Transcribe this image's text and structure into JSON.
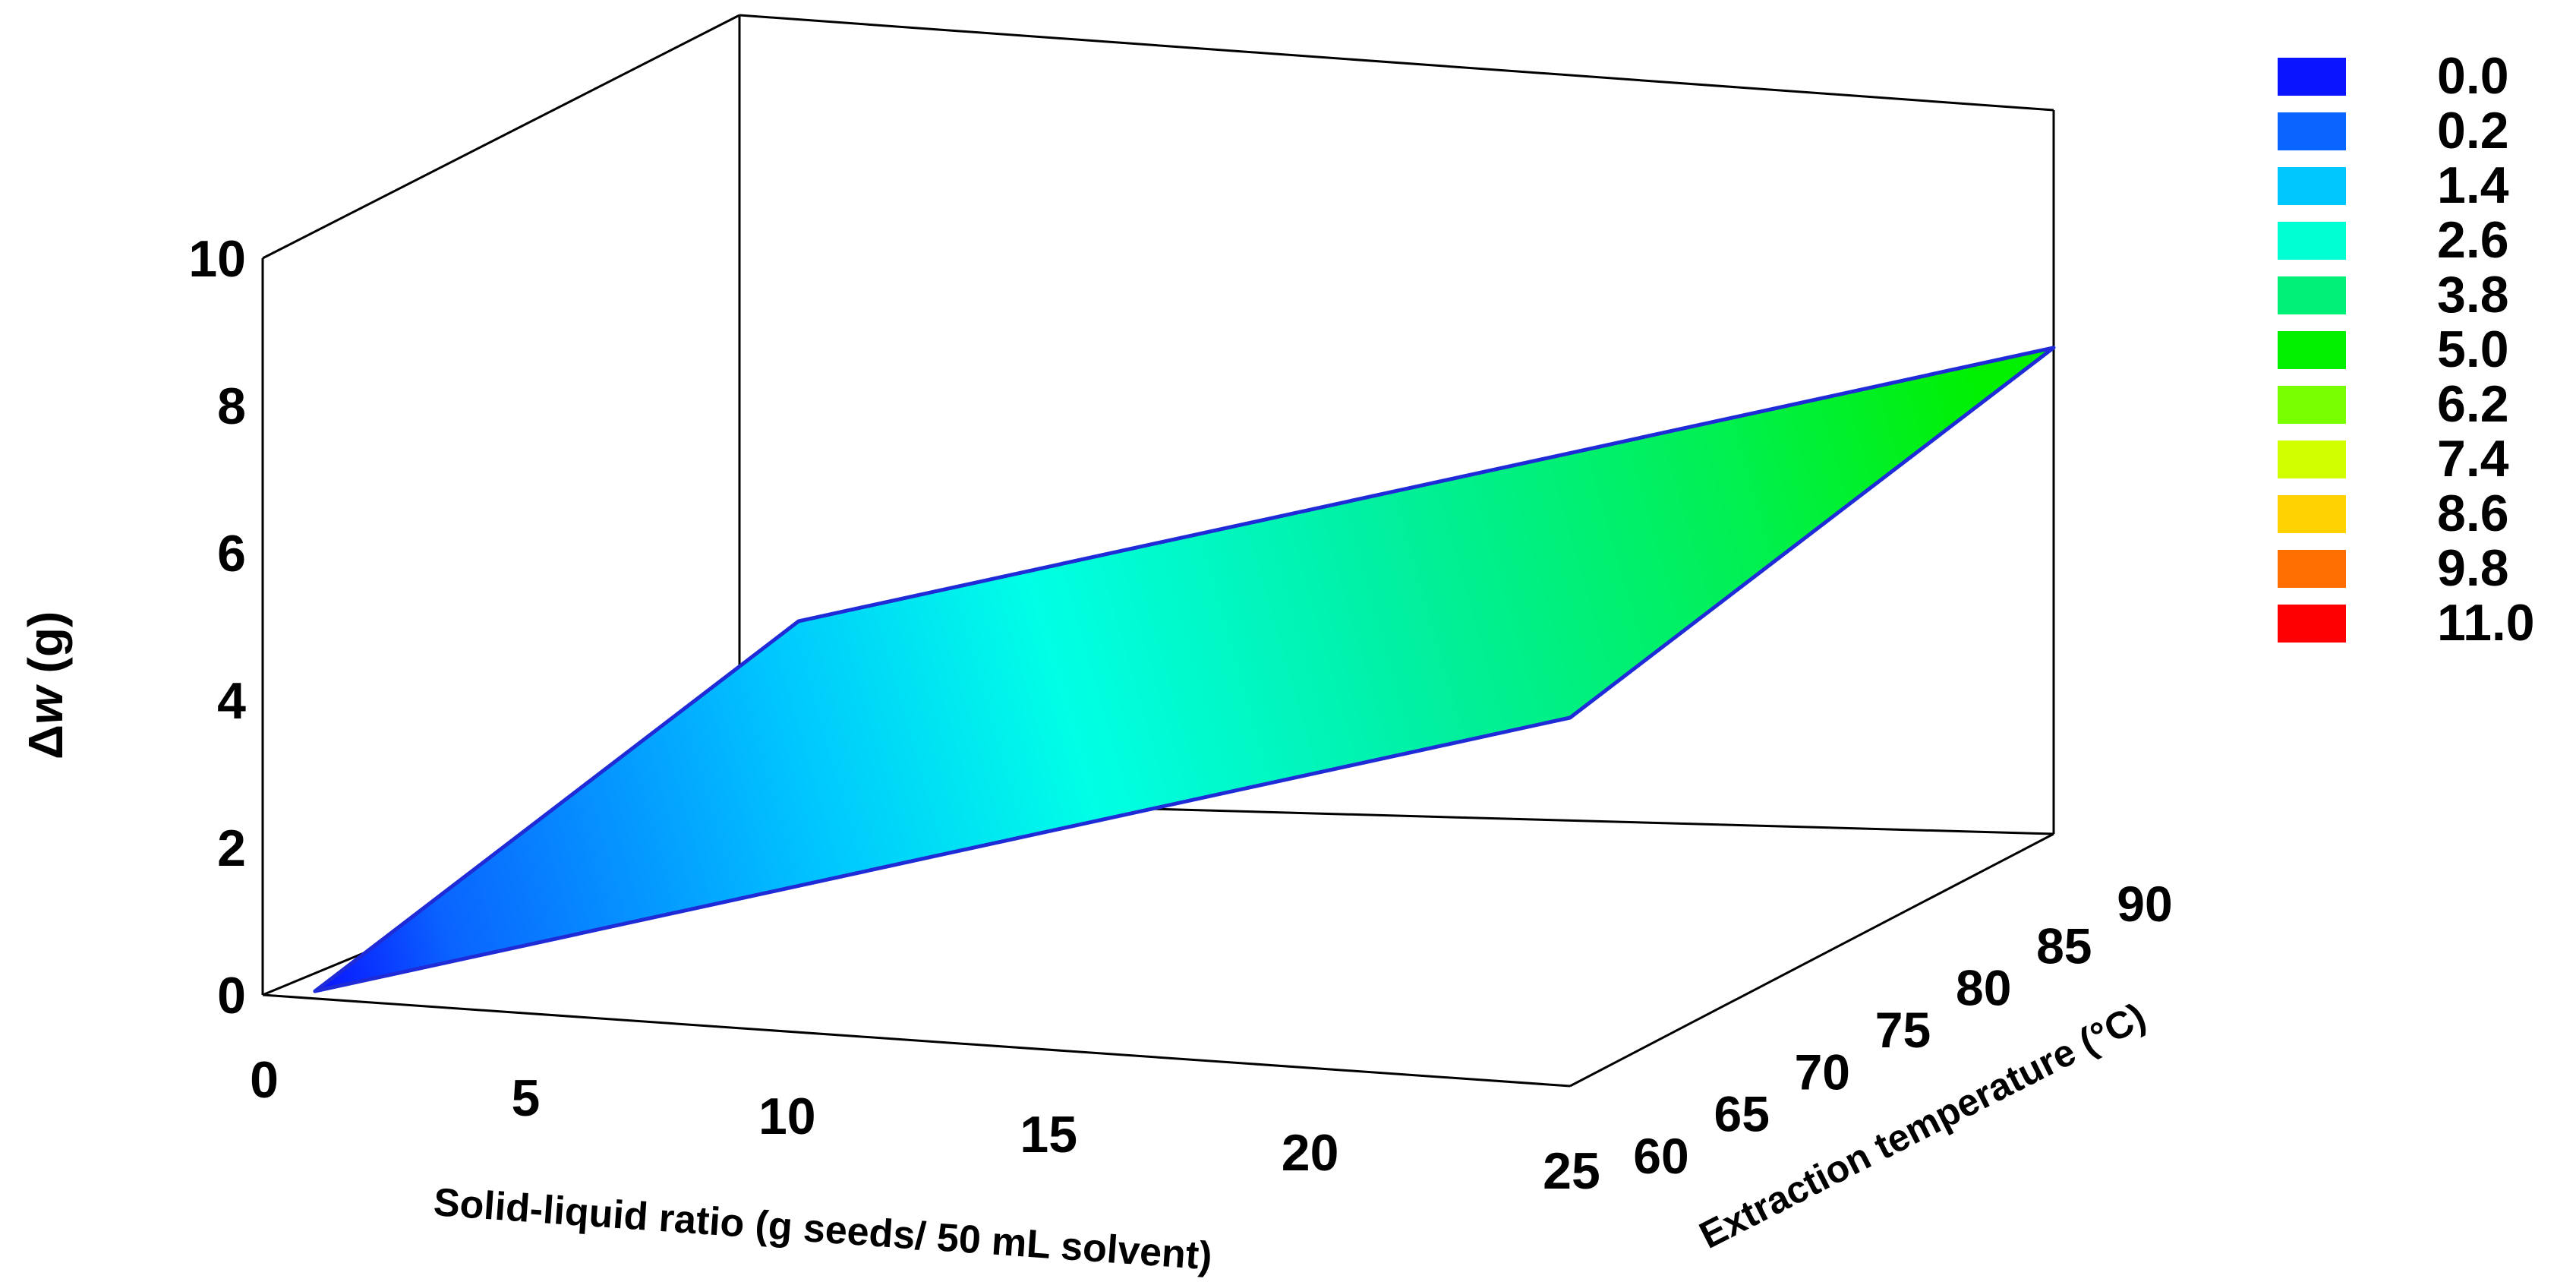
{
  "chart_data": {
    "type": "surface-3d",
    "title": "",
    "xlabel": "Solid-liquid ratio (g seeds/ 50 mL solvent)",
    "ylabel": "Extraction temperature (°C)",
    "zlabel_prefix": "Δ",
    "zlabel_var": "w",
    "zlabel_suffix": " (g)",
    "x_ticks": [
      "0",
      "5",
      "10",
      "15",
      "20",
      "25"
    ],
    "y_ticks": [
      "60",
      "65",
      "70",
      "75",
      "80",
      "85",
      "90"
    ],
    "z_ticks": [
      "0",
      "2",
      "4",
      "6",
      "8",
      "10"
    ],
    "xlim": [
      0,
      25
    ],
    "ylim": [
      60,
      90
    ],
    "zlim": [
      0,
      10
    ],
    "surface": {
      "x_range": [
        1,
        25
      ],
      "y_range": [
        60,
        90
      ],
      "corners": [
        {
          "x": 1,
          "y": 60,
          "z": 0.1
        },
        {
          "x": 25,
          "y": 60,
          "z": 5.0
        },
        {
          "x": 1,
          "y": 90,
          "z": 1.7
        },
        {
          "x": 25,
          "y": 90,
          "z": 6.6
        }
      ],
      "edge_color": "#1e2bd6"
    },
    "legend": [
      {
        "label": "0.0",
        "color": "#0a14ff"
      },
      {
        "label": "0.2",
        "color": "#0a64ff"
      },
      {
        "label": "1.4",
        "color": "#00c8ff"
      },
      {
        "label": "2.6",
        "color": "#00ffd2"
      },
      {
        "label": "3.8",
        "color": "#00f078"
      },
      {
        "label": "5.0",
        "color": "#00f000"
      },
      {
        "label": "6.2",
        "color": "#78ff00"
      },
      {
        "label": "7.4",
        "color": "#d2ff00"
      },
      {
        "label": "8.6",
        "color": "#ffd200"
      },
      {
        "label": "9.8",
        "color": "#ff6e00"
      },
      {
        "label": "11.0",
        "color": "#ff0000"
      }
    ]
  }
}
